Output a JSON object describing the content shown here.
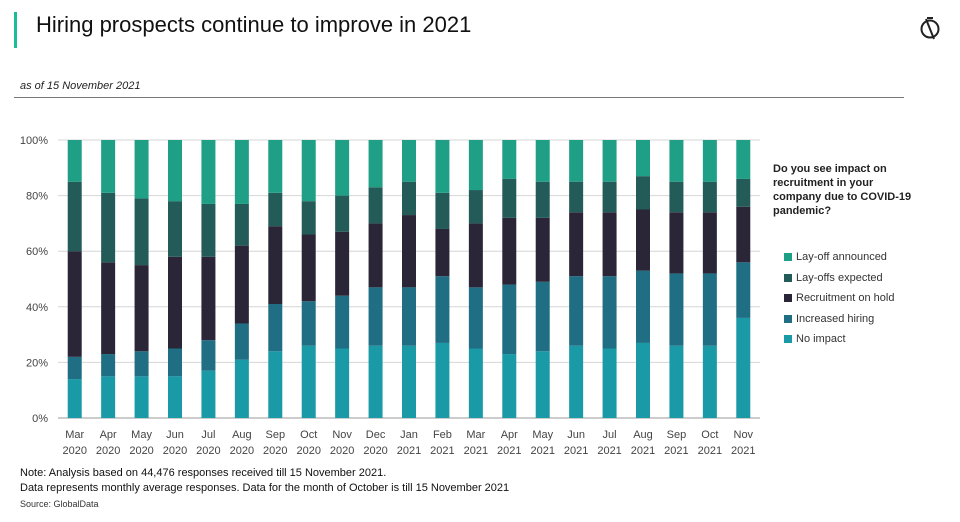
{
  "header": {
    "title": "Hiring prospects continue to improve in 2021",
    "subtitle": "as of 15 November 2021"
  },
  "legend": {
    "title": "Do you see impact on recruitment in your company due to COVID-19 pandemic?"
  },
  "footer": {
    "note_line1": "Note: Analysis based on 44,476 responses received till 15 November 2021.",
    "note_line2": "Data represents monthly average responses. Data for the month of October is till 15 November 2021",
    "source": "Source: GlobalData"
  },
  "chart_data": {
    "type": "bar",
    "stacked": true,
    "x_tick_labels": [
      [
        "Mar",
        "2020"
      ],
      [
        "Apr",
        "2020"
      ],
      [
        "May",
        "2020"
      ],
      [
        "Jun",
        "2020"
      ],
      [
        "Jul",
        "2020"
      ],
      [
        "Aug",
        "2020"
      ],
      [
        "Sep",
        "2020"
      ],
      [
        "Oct",
        "2020"
      ],
      [
        "Nov",
        "2020"
      ],
      [
        "Dec",
        "2020"
      ],
      [
        "Jan",
        "2021"
      ],
      [
        "Feb",
        "2021"
      ],
      [
        "Mar",
        "2021"
      ],
      [
        "Apr",
        "2021"
      ],
      [
        "May",
        "2021"
      ],
      [
        "Jun",
        "2021"
      ],
      [
        "Jul",
        "2021"
      ],
      [
        "Aug",
        "2021"
      ],
      [
        "Sep",
        "2021"
      ],
      [
        "Oct",
        "2021"
      ],
      [
        "Nov",
        "2021"
      ]
    ],
    "y_ticks": [
      "0%",
      "20%",
      "40%",
      "60%",
      "80%",
      "100%"
    ],
    "ylim": [
      0,
      100
    ],
    "grid": true,
    "legend_position": "right",
    "series": [
      {
        "name": "No impact",
        "color": "#1a9aa6",
        "values": [
          14,
          15,
          15,
          15,
          17,
          21,
          24,
          26,
          25,
          26,
          26,
          27,
          25,
          23,
          24,
          26,
          25,
          27,
          26,
          26,
          36
        ]
      },
      {
        "name": "Increased hiring",
        "color": "#1f6e83",
        "values": [
          8,
          8,
          9,
          10,
          11,
          13,
          17,
          16,
          19,
          21,
          21,
          24,
          22,
          25,
          25,
          25,
          26,
          26,
          26,
          26,
          20
        ]
      },
      {
        "name": "Recruitment on hold",
        "color": "#2a2637",
        "values": [
          38,
          33,
          31,
          33,
          30,
          28,
          28,
          24,
          23,
          23,
          26,
          17,
          23,
          24,
          23,
          23,
          23,
          22,
          22,
          22,
          20
        ]
      },
      {
        "name": "Lay-offs expected",
        "color": "#235b59",
        "values": [
          25,
          25,
          24,
          20,
          19,
          15,
          12,
          12,
          13,
          13,
          12,
          13,
          12,
          14,
          13,
          11,
          11,
          12,
          11,
          11,
          10
        ]
      },
      {
        "name": "Lay-off announced",
        "color": "#1f9f85",
        "values": [
          15,
          19,
          21,
          22,
          23,
          23,
          19,
          22,
          20,
          17,
          15,
          19,
          18,
          14,
          15,
          15,
          15,
          13,
          15,
          15,
          14
        ]
      }
    ]
  }
}
